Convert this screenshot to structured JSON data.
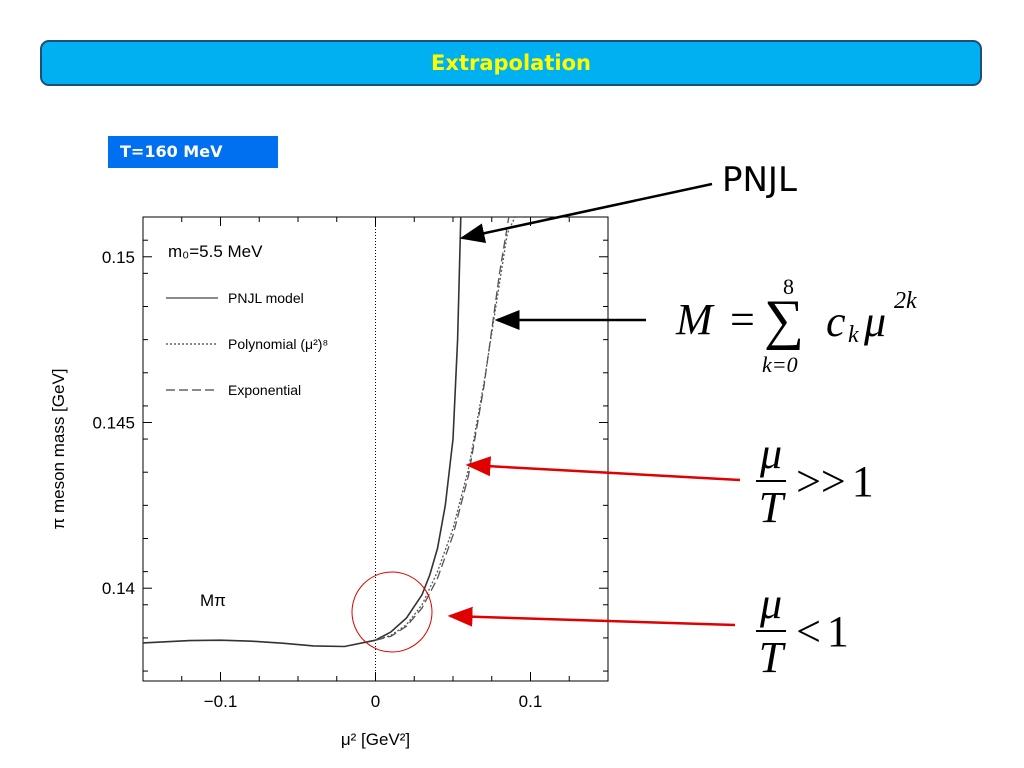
{
  "header": {
    "title": "Extrapolation"
  },
  "badge": {
    "label": "T=160 MeV"
  },
  "annotations": {
    "pnjl": "PNJL",
    "formula": {
      "lhs": "M",
      "eq": "=",
      "sum_top": "8",
      "sum_bottom": "k=0",
      "c": "c",
      "sub": "k",
      "mu": "μ",
      "exp": "2k"
    },
    "ratio_high": {
      "num": "μ",
      "den": "T",
      "rel": ">>",
      "val": "1"
    },
    "ratio_low": {
      "num": "μ",
      "den": "T",
      "rel": "<",
      "val": "1"
    }
  },
  "colors": {
    "title_bg": "#00b0f0",
    "title_text": "#ffff00",
    "badge_bg": "#0070f0",
    "arrow_black": "#000000",
    "arrow_red": "#e00000",
    "circle": "#e00000"
  },
  "chart_data": {
    "type": "line",
    "xlabel": "μ² [GeV²]",
    "ylabel": "π meson mass [GeV]",
    "xlim": [
      -0.15,
      0.15
    ],
    "ylim": [
      0.1372,
      0.1512
    ],
    "x_ticks": [
      {
        "value": -0.1,
        "label": "−0.1"
      },
      {
        "value": 0,
        "label": "0"
      },
      {
        "value": 0.1,
        "label": "0.1"
      }
    ],
    "y_ticks": [
      {
        "value": 0.14,
        "label": "0.14"
      },
      {
        "value": 0.145,
        "label": "0.145"
      },
      {
        "value": 0.15,
        "label": "0.15"
      }
    ],
    "annotation_text": "m₀=5.5 MeV",
    "series_label_text": "Mπ",
    "legend_position": "top-left",
    "series": [
      {
        "name": "PNJL model",
        "style": "solid",
        "x": [
          -0.15,
          -0.12,
          -0.1,
          -0.08,
          -0.06,
          -0.04,
          -0.02,
          0,
          0.01,
          0.02,
          0.03,
          0.035,
          0.04,
          0.045,
          0.05,
          0.053,
          0.055
        ],
        "y": [
          0.13835,
          0.13842,
          0.13843,
          0.1384,
          0.13834,
          0.13826,
          0.13824,
          0.13843,
          0.13868,
          0.1391,
          0.1398,
          0.1404,
          0.1412,
          0.1425,
          0.1445,
          0.1475,
          0.1512
        ]
      },
      {
        "name": "Polynomial (μ²)⁸",
        "style": "dotted",
        "x": [
          0,
          0.01,
          0.02,
          0.03,
          0.04,
          0.05,
          0.06,
          0.07,
          0.08,
          0.085,
          0.09
        ],
        "y": [
          0.13843,
          0.13858,
          0.1389,
          0.1395,
          0.1405,
          0.1418,
          0.1436,
          0.1462,
          0.1492,
          0.1507,
          0.1512
        ]
      },
      {
        "name": "Exponential",
        "style": "dashed",
        "x": [
          0,
          0.01,
          0.02,
          0.03,
          0.04,
          0.05,
          0.06,
          0.07,
          0.08,
          0.086
        ],
        "y": [
          0.13843,
          0.13855,
          0.13885,
          0.1394,
          0.1403,
          0.1416,
          0.1434,
          0.1461,
          0.1495,
          0.1512
        ]
      }
    ]
  }
}
